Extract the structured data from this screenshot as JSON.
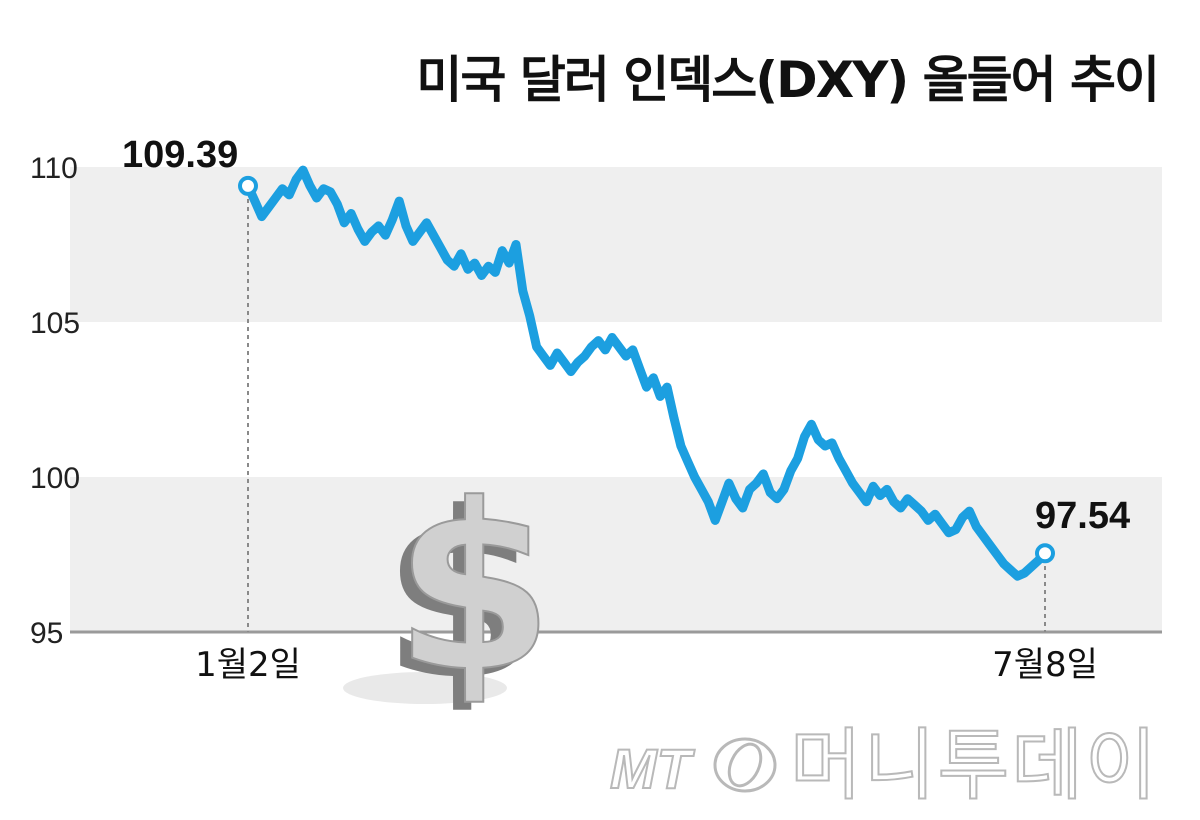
{
  "chart_data": {
    "type": "line",
    "title": "미국 달러 인덱스(DXY) 올들어 추이",
    "ylim": [
      95,
      110
    ],
    "yticks": [
      "110",
      "105",
      "100",
      "95"
    ],
    "x_labels": [
      "1월2일",
      "7월8일"
    ],
    "start_label": "109.39",
    "end_label": "97.54",
    "grid": "alternating horizontal bands",
    "line_color": "#1c9fe0",
    "series": [
      {
        "values": [
          109.39,
          108.9,
          108.4,
          108.7,
          109.0,
          109.3,
          109.1,
          109.6,
          109.9,
          109.4,
          109.0,
          109.3,
          109.2,
          108.8,
          108.2,
          108.5,
          108.0,
          107.6,
          107.9,
          108.1,
          107.8,
          108.3,
          108.9,
          108.1,
          107.6,
          107.9,
          108.2,
          107.8,
          107.4,
          107.0,
          106.8,
          107.2,
          106.7,
          106.9,
          106.5,
          106.8,
          106.6,
          107.3,
          106.9,
          107.5,
          106.0,
          105.2,
          104.2,
          103.9,
          103.6,
          104.0,
          103.7,
          103.4,
          103.7,
          103.9,
          104.2,
          104.4,
          104.1,
          104.5,
          104.2,
          103.9,
          104.1,
          103.5,
          102.9,
          103.2,
          102.6,
          102.9,
          101.9,
          101.0,
          100.5,
          100.0,
          99.6,
          99.2,
          98.6,
          99.2,
          99.8,
          99.3,
          99.0,
          99.6,
          99.8,
          100.1,
          99.5,
          99.3,
          99.6,
          100.2,
          100.6,
          101.3,
          101.7,
          101.2,
          101.0,
          101.1,
          100.6,
          100.2,
          99.8,
          99.5,
          99.2,
          99.7,
          99.4,
          99.6,
          99.2,
          99.0,
          99.3,
          99.1,
          98.9,
          98.6,
          98.8,
          98.5,
          98.2,
          98.3,
          98.7,
          98.9,
          98.4,
          98.1,
          97.8,
          97.5,
          97.2,
          97.0,
          96.8,
          96.9,
          97.1,
          97.3,
          97.54
        ]
      }
    ]
  },
  "watermark": {
    "mt": "MT",
    "brand": "머니투데이"
  }
}
